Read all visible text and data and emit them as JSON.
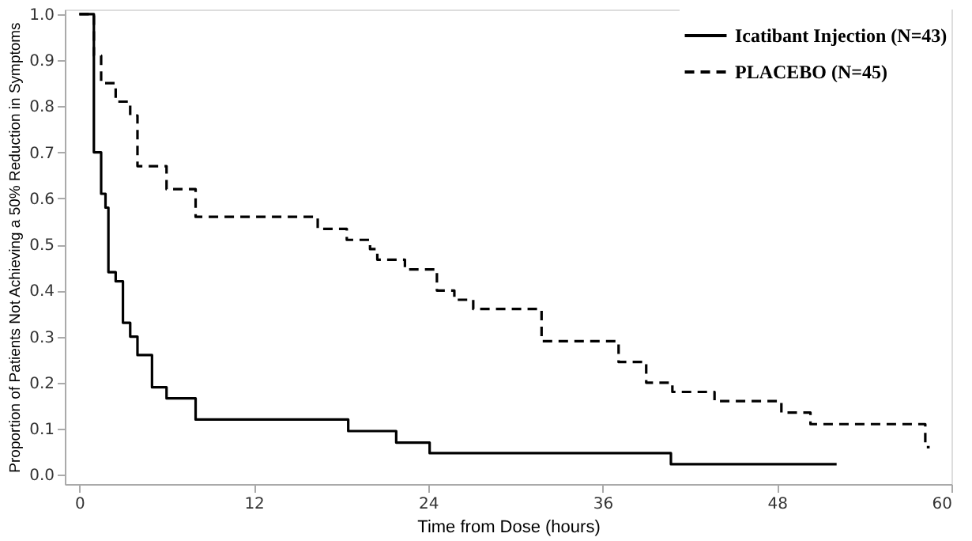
{
  "chart_data": {
    "type": "step",
    "xlabel": "Time from Dose (hours)",
    "ylabel": "Proportion of Patients Not Achieving a 50% Reduction in Symptoms",
    "xlim": [
      -1,
      60
    ],
    "xticks": [
      0,
      12,
      24,
      36,
      48,
      60
    ],
    "ylim": [
      -0.02,
      1.01
    ],
    "yticks": [
      {
        "value": 0,
        "label": "0.0"
      },
      0.1,
      0.2,
      0.3,
      0.4,
      0.5,
      0.6,
      0.7,
      0.8,
      0.9,
      {
        "value": 1,
        "label": "1.0"
      }
    ],
    "grid": false,
    "legend": "top right",
    "series": [
      {
        "name": "Icatibant Injection (N=43)",
        "color": "#000000",
        "line_style": "solid",
        "x": [
          0,
          1.0,
          1.5,
          1.8,
          2.0,
          2.5,
          3.0,
          3.5,
          4.0,
          5.0,
          6.0,
          8.0,
          18.5,
          21.8,
          24.1,
          40.7,
          52.1
        ],
        "values": [
          1,
          0.7,
          0.61,
          0.58,
          0.44,
          0.42,
          0.33,
          0.3,
          0.26,
          0.19,
          0.166,
          0.12,
          0.095,
          0.07,
          0.047,
          0.023,
          0.023
        ]
      },
      {
        "name": "PLACEBO (N=45)",
        "color": "#000000",
        "line_style": "dashed",
        "x": [
          0,
          1.0,
          1.5,
          2.5,
          3.5,
          4.0,
          6.0,
          8.0,
          16.4,
          18.4,
          20.0,
          20.5,
          22.4,
          24.6,
          25.8,
          27.1,
          31.8,
          37.1,
          39.0,
          40.8,
          43.7,
          48.3,
          50.3,
          58.2,
          58.5
        ],
        "values": [
          1,
          0.91,
          0.85,
          0.81,
          0.78,
          0.67,
          0.62,
          0.56,
          0.534,
          0.51,
          0.49,
          0.467,
          0.446,
          0.4,
          0.38,
          0.36,
          0.29,
          0.245,
          0.2,
          0.18,
          0.16,
          0.135,
          0.11,
          0.06,
          0.06
        ]
      }
    ]
  }
}
